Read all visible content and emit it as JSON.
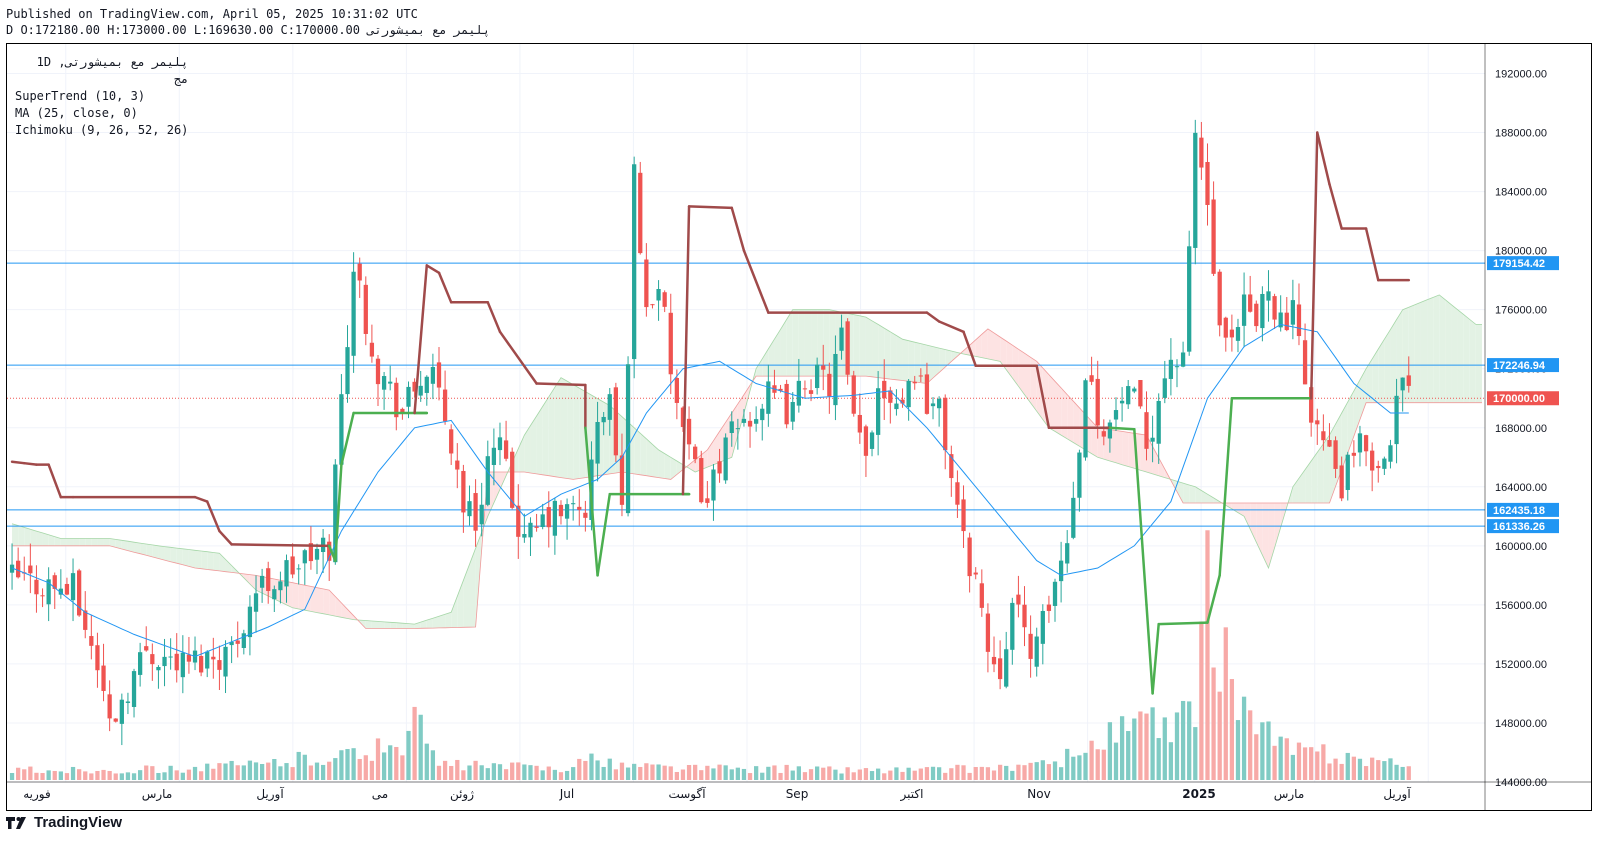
{
  "header": {
    "published": "Published on TradingView.com, April 05, 2025 10:31:02 UTC",
    "ohlc": "پلیمر مع بمیشورتی D O:172180.00 H:173000.00 L:169630.00 C:170000.00"
  },
  "legend": {
    "symbol": "پلیمر مع بمیشورتی, 1D",
    "exchange": "مج",
    "supertrend": "SuperTrend (10, 3)",
    "ma": "MA (25, close, 0)",
    "ichimoku": "Ichimoku (9, 26, 52, 26)"
  },
  "brand": {
    "name": "TradingView",
    "icon": "tradingview-logo-icon"
  },
  "colors": {
    "up": "#26a69a",
    "down": "#ef5350",
    "ma": "#2196f3",
    "supertrend_up": "#4caf50",
    "supertrend_down": "#a04a4a",
    "cloud_bull": "#e3f2e4",
    "cloud_bear": "#fde3e3",
    "hline": "#2196f3",
    "last": "#ef5350"
  },
  "chart_data": {
    "type": "candlestick",
    "x_labels": [
      "فوریه",
      "مارس",
      "آوریل",
      "می",
      "ژوئن",
      "Jul",
      "آگوست",
      "Sep",
      "اکتبر",
      "Nov",
      "2025",
      "مارس",
      "آوریل"
    ],
    "y_axis": {
      "min": 144000,
      "max": 194000,
      "ticks": [
        "192000.00",
        "188000.00",
        "184000.00",
        "180000.00",
        "176000.00",
        "172000.00",
        "168000.00",
        "164000.00",
        "160000.00",
        "156000.00",
        "152000.00",
        "148000.00",
        "144000.00"
      ]
    },
    "horizontal_lines": [
      {
        "value": 179154.42,
        "label": "179154.42"
      },
      {
        "value": 172246.94,
        "label": "172246.94"
      },
      {
        "value": 162435.18,
        "label": "162435.18"
      },
      {
        "value": 161336.26,
        "label": "161336.26"
      }
    ],
    "last_price": {
      "value": 170000.0,
      "label": "170000.00"
    },
    "candle_count": 230,
    "close_path": [
      [
        0,
        157800
      ],
      [
        10,
        157000
      ],
      [
        14,
        152000
      ],
      [
        16,
        148000
      ],
      [
        22,
        153000
      ],
      [
        28,
        152000
      ],
      [
        36,
        153000
      ],
      [
        40,
        157000
      ],
      [
        48,
        159000
      ],
      [
        52,
        160000
      ],
      [
        54,
        170000
      ],
      [
        56,
        179000
      ],
      [
        60,
        172000
      ],
      [
        64,
        169000
      ],
      [
        68,
        172000
      ],
      [
        70,
        170000
      ],
      [
        72,
        167000
      ],
      [
        74,
        163000
      ],
      [
        76,
        161500
      ],
      [
        78,
        166000
      ],
      [
        80,
        166500
      ],
      [
        82,
        163000
      ],
      [
        84,
        160000
      ],
      [
        88,
        162000
      ],
      [
        94,
        162500
      ],
      [
        96,
        168000
      ],
      [
        98,
        170000
      ],
      [
        100,
        162000
      ],
      [
        102,
        185000
      ],
      [
        104,
        176000
      ],
      [
        106,
        178000
      ],
      [
        108,
        172000
      ],
      [
        110,
        167000
      ],
      [
        112,
        165000
      ],
      [
        114,
        163000
      ],
      [
        116,
        166000
      ],
      [
        120,
        168500
      ],
      [
        124,
        170000
      ],
      [
        128,
        169000
      ],
      [
        130,
        171500
      ],
      [
        134,
        171000
      ],
      [
        136,
        174000
      ],
      [
        138,
        168000
      ],
      [
        140,
        166000
      ],
      [
        142,
        171000
      ],
      [
        146,
        170000
      ],
      [
        148,
        172000
      ],
      [
        150,
        170000
      ],
      [
        152,
        169000
      ],
      [
        154,
        165000
      ],
      [
        156,
        160000
      ],
      [
        158,
        158000
      ],
      [
        160,
        153000
      ],
      [
        162,
        152000
      ],
      [
        164,
        156000
      ],
      [
        166,
        154000
      ],
      [
        168,
        153000
      ],
      [
        170,
        156000
      ],
      [
        172,
        159000
      ],
      [
        174,
        163000
      ],
      [
        176,
        172000
      ],
      [
        178,
        169000
      ],
      [
        180,
        168000
      ],
      [
        182,
        170000
      ],
      [
        184,
        169500
      ],
      [
        186,
        167000
      ],
      [
        190,
        173000
      ],
      [
        192,
        172000
      ],
      [
        194,
        188000
      ],
      [
        196,
        183000
      ],
      [
        198,
        174000
      ],
      [
        200,
        173000
      ],
      [
        202,
        176000
      ],
      [
        204,
        175000
      ],
      [
        206,
        178000
      ],
      [
        208,
        175000
      ],
      [
        210,
        175500
      ],
      [
        212,
        171000
      ],
      [
        214,
        168000
      ],
      [
        216,
        166000
      ],
      [
        218,
        164000
      ],
      [
        220,
        166000
      ],
      [
        222,
        167000
      ],
      [
        224,
        165000
      ],
      [
        226,
        168000
      ],
      [
        228,
        171000
      ],
      [
        229,
        170000
      ]
    ],
    "ma_path": [
      [
        0,
        158500
      ],
      [
        6,
        157500
      ],
      [
        12,
        155500
      ],
      [
        20,
        154000
      ],
      [
        30,
        152500
      ],
      [
        36,
        153500
      ],
      [
        42,
        154500
      ],
      [
        48,
        155700
      ],
      [
        54,
        161000
      ],
      [
        60,
        165000
      ],
      [
        66,
        168000
      ],
      [
        72,
        168500
      ],
      [
        78,
        165000
      ],
      [
        84,
        162000
      ],
      [
        90,
        163500
      ],
      [
        96,
        164500
      ],
      [
        100,
        166000
      ],
      [
        104,
        169000
      ],
      [
        110,
        172000
      ],
      [
        116,
        172500
      ],
      [
        122,
        171000
      ],
      [
        130,
        170000
      ],
      [
        138,
        170200
      ],
      [
        144,
        170500
      ],
      [
        150,
        168000
      ],
      [
        156,
        165000
      ],
      [
        162,
        162000
      ],
      [
        168,
        159000
      ],
      [
        172,
        158000
      ],
      [
        178,
        158500
      ],
      [
        184,
        160000
      ],
      [
        190,
        163000
      ],
      [
        196,
        170000
      ],
      [
        202,
        173500
      ],
      [
        208,
        175000
      ],
      [
        214,
        174500
      ],
      [
        220,
        171000
      ],
      [
        226,
        169000
      ],
      [
        229,
        169000
      ]
    ],
    "supertrend_path": [
      [
        0,
        165700
      ],
      [
        2,
        165600
      ],
      [
        4,
        165500
      ],
      [
        6,
        165500
      ],
      [
        8,
        163300
      ],
      [
        10,
        163300
      ],
      [
        30,
        163300
      ],
      [
        32,
        163000
      ],
      [
        34,
        161000
      ],
      [
        36,
        160100
      ],
      [
        52,
        160000
      ],
      [
        53,
        159000
      ],
      [
        53,
        159000
      ],
      [
        54,
        165500
      ],
      [
        56,
        169000
      ],
      [
        66,
        169000
      ],
      [
        68,
        169000
      ],
      [
        66,
        169000
      ],
      [
        68,
        179000
      ],
      [
        70,
        178500
      ],
      [
        72,
        176500
      ],
      [
        78,
        176500
      ],
      [
        80,
        174500
      ],
      [
        86,
        171000
      ],
      [
        94,
        170900
      ],
      [
        94,
        168000
      ],
      [
        96,
        158000
      ],
      [
        98,
        163500
      ],
      [
        110,
        163500
      ],
      [
        111,
        163500
      ],
      [
        110,
        163500
      ],
      [
        111,
        183000
      ],
      [
        118,
        182900
      ],
      [
        120,
        180000
      ],
      [
        124,
        175800
      ],
      [
        150,
        175800
      ],
      [
        152,
        175200
      ],
      [
        156,
        174500
      ],
      [
        158,
        172200
      ],
      [
        168,
        172200
      ],
      [
        170,
        168000
      ],
      [
        180,
        168000
      ],
      [
        184,
        167900
      ],
      [
        184,
        167900
      ],
      [
        186,
        156000
      ],
      [
        187,
        150000
      ],
      [
        188,
        154700
      ],
      [
        196,
        154800
      ],
      [
        198,
        158000
      ],
      [
        200,
        170000
      ],
      [
        212,
        170000
      ],
      [
        213,
        170000
      ],
      [
        213,
        170000
      ],
      [
        214,
        188000
      ],
      [
        216,
        184500
      ],
      [
        218,
        181500
      ],
      [
        222,
        181500
      ],
      [
        224,
        178000
      ],
      [
        229,
        178000
      ]
    ],
    "span_a_path": [
      [
        0,
        161500
      ],
      [
        8,
        160500
      ],
      [
        16,
        160500
      ],
      [
        24,
        160000
      ],
      [
        34,
        159500
      ],
      [
        40,
        157000
      ],
      [
        46,
        155800
      ],
      [
        56,
        155000
      ],
      [
        66,
        154700
      ],
      [
        72,
        155500
      ],
      [
        78,
        162000
      ],
      [
        84,
        167500
      ],
      [
        90,
        171400
      ],
      [
        98,
        169500
      ],
      [
        106,
        166500
      ],
      [
        112,
        165000
      ],
      [
        118,
        166000
      ],
      [
        122,
        172000
      ],
      [
        128,
        176000
      ],
      [
        134,
        176000
      ],
      [
        140,
        175500
      ],
      [
        146,
        174000
      ],
      [
        156,
        173000
      ],
      [
        162,
        172500
      ],
      [
        170,
        168000
      ],
      [
        178,
        166000
      ],
      [
        186,
        165000
      ],
      [
        194,
        164000
      ],
      [
        202,
        162000
      ],
      [
        206,
        158500
      ],
      [
        210,
        164000
      ],
      [
        216,
        167500
      ],
      [
        222,
        172000
      ],
      [
        228,
        176000
      ],
      [
        234,
        177000
      ],
      [
        240,
        175000
      ]
    ],
    "span_b_path": [
      [
        0,
        160000
      ],
      [
        16,
        160000
      ],
      [
        30,
        158500
      ],
      [
        40,
        158000
      ],
      [
        52,
        157000
      ],
      [
        58,
        154400
      ],
      [
        66,
        154400
      ],
      [
        76,
        154500
      ],
      [
        78,
        165000
      ],
      [
        84,
        165000
      ],
      [
        92,
        164500
      ],
      [
        100,
        165000
      ],
      [
        108,
        164500
      ],
      [
        114,
        166500
      ],
      [
        122,
        171500
      ],
      [
        130,
        171500
      ],
      [
        140,
        171500
      ],
      [
        150,
        171000
      ],
      [
        160,
        174700
      ],
      [
        168,
        172500
      ],
      [
        178,
        168000
      ],
      [
        186,
        167500
      ],
      [
        192,
        162900
      ],
      [
        202,
        162900
      ],
      [
        206,
        162900
      ],
      [
        210,
        162900
      ],
      [
        216,
        162900
      ],
      [
        222,
        169700
      ],
      [
        240,
        169700
      ]
    ],
    "volume_path": [
      [
        0,
        1
      ],
      [
        20,
        1
      ],
      [
        28,
        1.2
      ],
      [
        40,
        1.5
      ],
      [
        52,
        2.5
      ],
      [
        56,
        2.5
      ],
      [
        60,
        3
      ],
      [
        64,
        4
      ],
      [
        66,
        6
      ],
      [
        70,
        1.5
      ],
      [
        90,
        1.2
      ],
      [
        94,
        2
      ],
      [
        100,
        1.5
      ],
      [
        110,
        1.2
      ],
      [
        140,
        1
      ],
      [
        150,
        1
      ],
      [
        170,
        1.5
      ],
      [
        176,
        3
      ],
      [
        182,
        5
      ],
      [
        186,
        6
      ],
      [
        190,
        4
      ],
      [
        194,
        8
      ],
      [
        196,
        18
      ],
      [
        198,
        14
      ],
      [
        200,
        10
      ],
      [
        204,
        5
      ],
      [
        210,
        3
      ],
      [
        216,
        2.5
      ],
      [
        224,
        2
      ],
      [
        229,
        1
      ]
    ]
  }
}
